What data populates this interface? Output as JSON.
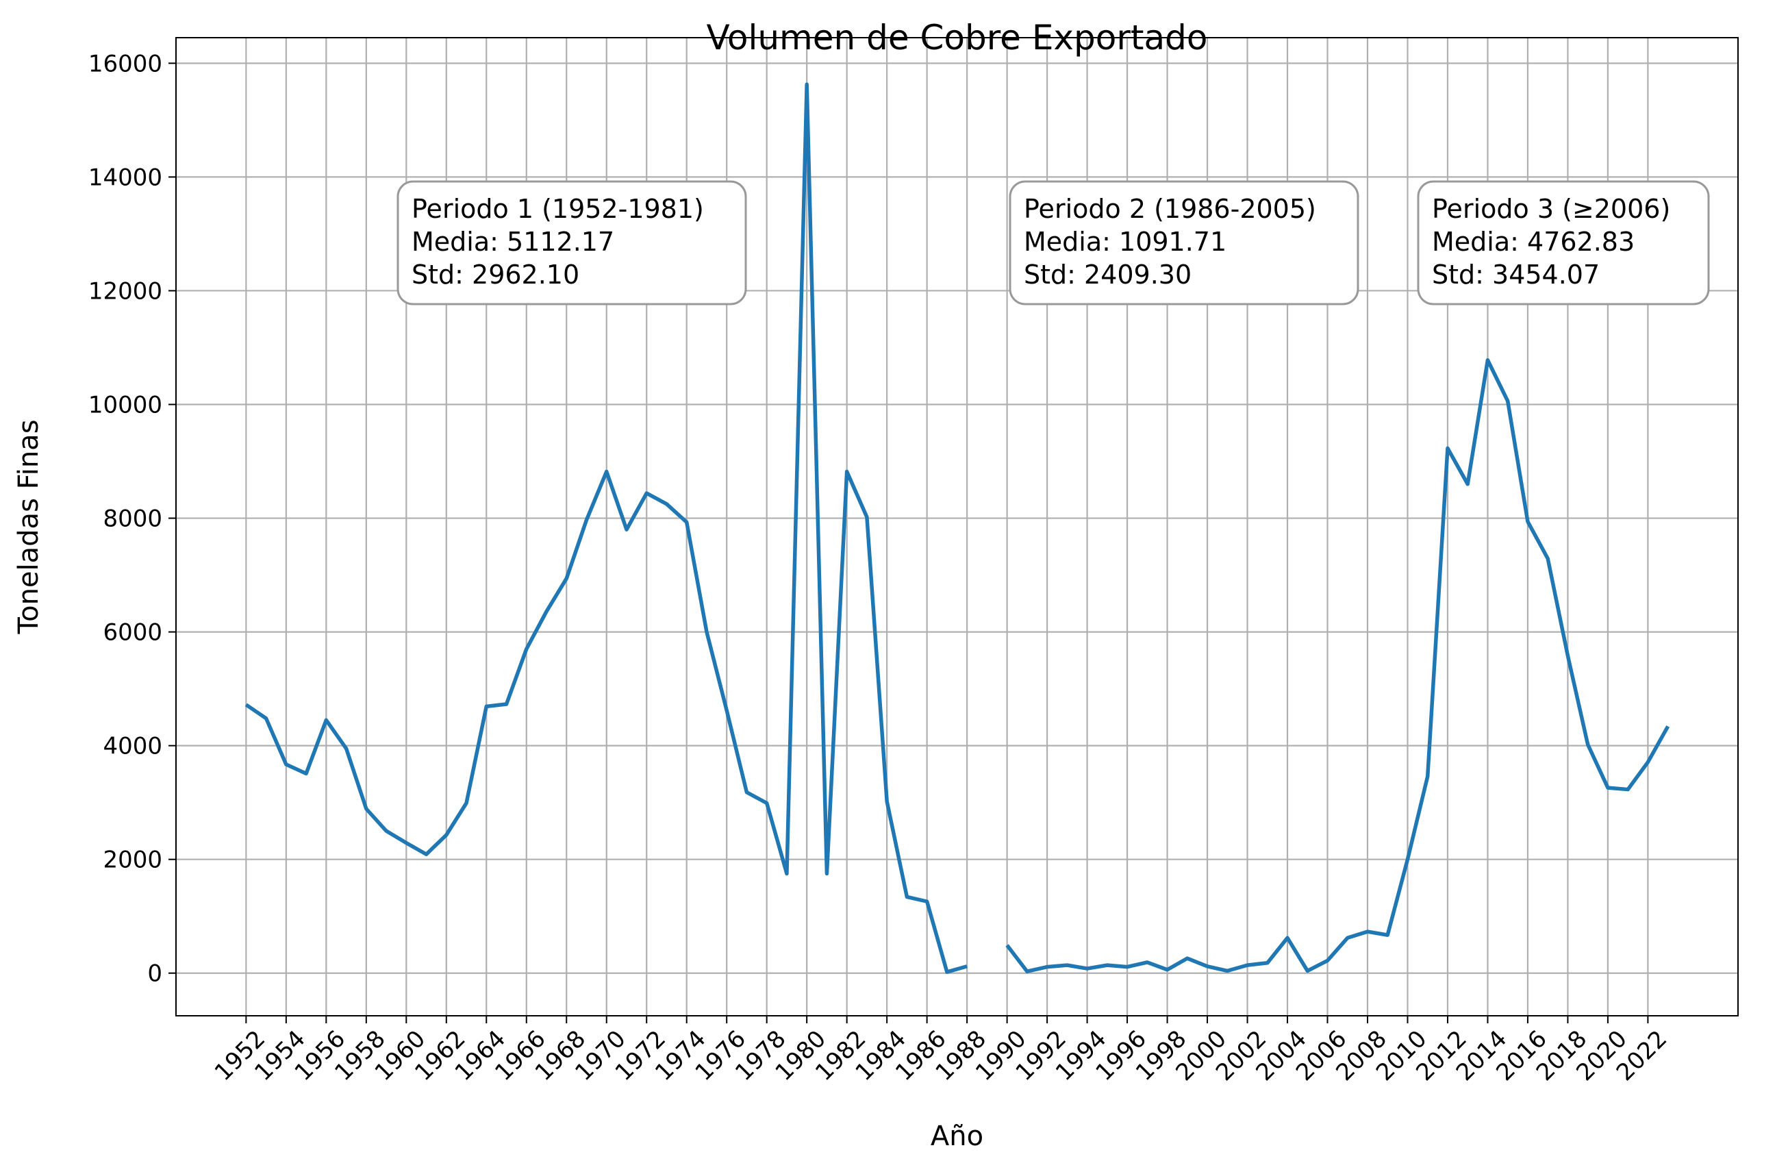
{
  "chart_data": {
    "type": "line",
    "title": "Volumen de Cobre Exportado",
    "xlabel": "Año",
    "ylabel": "Toneladas Finas",
    "xlim": [
      1948.5,
      2026.5
    ],
    "ylim": [
      -750,
      16450
    ],
    "grid": true,
    "x_ticks": [
      1952,
      1954,
      1956,
      1958,
      1960,
      1962,
      1964,
      1966,
      1968,
      1970,
      1972,
      1974,
      1976,
      1978,
      1980,
      1982,
      1984,
      1986,
      1988,
      1990,
      1992,
      1994,
      1996,
      1998,
      2000,
      2002,
      2004,
      2006,
      2008,
      2010,
      2012,
      2014,
      2016,
      2018,
      2020,
      2022
    ],
    "y_ticks": [
      0,
      2000,
      4000,
      6000,
      8000,
      10000,
      12000,
      14000,
      16000
    ],
    "series": [
      {
        "color": "#1f77b4",
        "x": [
          1952,
          1953,
          1954,
          1955,
          1956,
          1957,
          1958,
          1959,
          1960,
          1961,
          1962,
          1963,
          1964,
          1965,
          1966,
          1967,
          1968,
          1969,
          1970,
          1971,
          1972,
          1973,
          1974,
          1975,
          1976,
          1977,
          1978,
          1979,
          1980,
          1981,
          1982,
          1983,
          1984,
          1985,
          1986,
          1987,
          1988,
          1989,
          1990,
          1991,
          1992,
          1993,
          1994,
          1995,
          1996,
          1997,
          1998,
          1999,
          2000,
          2001,
          2002,
          2003,
          2004,
          2005,
          2006,
          2007,
          2008,
          2009,
          2010,
          2011,
          2012,
          2013,
          2014,
          2015,
          2016,
          2017,
          2018,
          2019,
          2020,
          2021,
          2022,
          2023
        ],
        "y": [
          4720,
          4480,
          3670,
          3510,
          4450,
          3950,
          2890,
          2500,
          2290,
          2090,
          2430,
          2990,
          4690,
          4730,
          5700,
          6360,
          6940,
          7970,
          8820,
          7800,
          8440,
          8250,
          7930,
          6000,
          4620,
          3180,
          2990,
          1750,
          15630,
          1750,
          8820,
          8020,
          3020,
          1340,
          1260,
          20,
          120,
          null,
          490,
          30,
          110,
          140,
          80,
          140,
          110,
          190,
          60,
          260,
          120,
          40,
          140,
          180,
          620,
          40,
          220,
          620,
          730,
          670,
          2000,
          3460,
          9230,
          8600,
          10780,
          10060,
          7940,
          7290,
          5580,
          4020,
          3260,
          3230,
          3710,
          4340
        ]
      }
    ],
    "annotations": [
      {
        "lines": [
          "Periodo 1 (1952-1981)",
          "Media: 5112.17",
          "Std: 2962.10"
        ]
      },
      {
        "lines": [
          "Periodo 2 (1986-2005)",
          "Media: 1091.71",
          "Std: 2409.30"
        ]
      },
      {
        "lines": [
          "Periodo 3 (≥2006)",
          "Media: 4762.83",
          "Std: 3454.07"
        ]
      }
    ]
  }
}
